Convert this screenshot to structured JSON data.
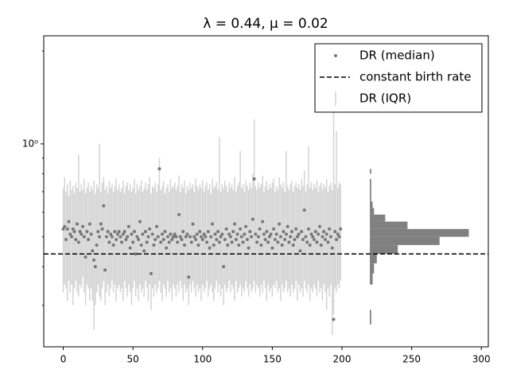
{
  "chart_data": {
    "type": "errorbar_scatter",
    "title": "λ = 0.44, μ = 0.02",
    "xlim": [
      -14,
      305
    ],
    "xticks": [
      0,
      50,
      100,
      150,
      200,
      250,
      300
    ],
    "ylim": [
      0.22,
      2.24
    ],
    "yscale": "log",
    "yticks": [
      {
        "value": 1,
        "label": "10⁰"
      }
    ],
    "yticks_minor": [
      0.3,
      0.4,
      0.5,
      0.6,
      0.7,
      0.8,
      0.9,
      2
    ],
    "legend": "upper right",
    "x": [
      0,
      1,
      2,
      3,
      4,
      5,
      6,
      7,
      8,
      9,
      10,
      11,
      12,
      13,
      14,
      15,
      16,
      17,
      18,
      19,
      20,
      21,
      22,
      23,
      24,
      25,
      26,
      27,
      28,
      29,
      30,
      31,
      32,
      33,
      34,
      35,
      36,
      37,
      38,
      39,
      40,
      41,
      42,
      43,
      44,
      45,
      46,
      47,
      48,
      49,
      50,
      51,
      52,
      53,
      54,
      55,
      56,
      57,
      58,
      59,
      60,
      61,
      62,
      63,
      64,
      65,
      66,
      67,
      68,
      69,
      70,
      71,
      72,
      73,
      74,
      75,
      76,
      77,
      78,
      79,
      80,
      81,
      82,
      83,
      84,
      85,
      86,
      87,
      88,
      89,
      90,
      91,
      92,
      93,
      94,
      95,
      96,
      97,
      98,
      99,
      100,
      101,
      102,
      103,
      104,
      105,
      106,
      107,
      108,
      109,
      110,
      111,
      112,
      113,
      114,
      115,
      116,
      117,
      118,
      119,
      120,
      121,
      122,
      123,
      124,
      125,
      126,
      127,
      128,
      129,
      130,
      131,
      132,
      133,
      134,
      135,
      136,
      137,
      138,
      139,
      140,
      141,
      142,
      143,
      144,
      145,
      146,
      147,
      148,
      149,
      150,
      151,
      152,
      153,
      154,
      155,
      156,
      157,
      158,
      159,
      160,
      161,
      162,
      163,
      164,
      165,
      166,
      167,
      168,
      169,
      170,
      171,
      172,
      173,
      174,
      175,
      176,
      177,
      178,
      179,
      180,
      181,
      182,
      183,
      184,
      185,
      186,
      187,
      188,
      189,
      190,
      191,
      192,
      193,
      194,
      195,
      196,
      197,
      198,
      199
    ],
    "series": [
      {
        "name": "DR (median)",
        "color": "#777777",
        "values": [
          0.53,
          0.54,
          0.49,
          0.53,
          0.56,
          0.51,
          0.5,
          0.53,
          0.52,
          0.49,
          0.55,
          0.48,
          0.52,
          0.51,
          0.54,
          0.5,
          0.43,
          0.52,
          0.49,
          0.55,
          0.51,
          0.45,
          0.42,
          0.4,
          0.47,
          0.52,
          0.5,
          0.55,
          0.53,
          0.63,
          0.39,
          0.5,
          0.52,
          0.48,
          0.51,
          0.5,
          0.47,
          0.52,
          0.49,
          0.51,
          0.52,
          0.5,
          0.48,
          0.51,
          0.52,
          0.49,
          0.5,
          0.54,
          0.46,
          0.51,
          0.48,
          0.52,
          0.44,
          0.5,
          0.49,
          0.56,
          0.47,
          0.51,
          0.45,
          0.52,
          0.48,
          0.5,
          0.53,
          0.38,
          0.51,
          0.47,
          0.49,
          0.54,
          0.5,
          0.83,
          0.48,
          0.51,
          0.49,
          0.52,
          0.46,
          0.5,
          0.48,
          0.51,
          0.49,
          0.5,
          0.51,
          0.5,
          0.48,
          0.59,
          0.5,
          0.49,
          0.52,
          0.47,
          0.5,
          0.51,
          0.37,
          0.5,
          0.48,
          0.55,
          0.5,
          0.49,
          0.51,
          0.47,
          0.52,
          0.5,
          0.49,
          0.51,
          0.5,
          0.48,
          0.52,
          0.46,
          0.5,
          0.55,
          0.47,
          0.51,
          0.49,
          0.52,
          0.48,
          0.5,
          0.51,
          0.4,
          0.49,
          0.53,
          0.47,
          0.51,
          0.5,
          0.48,
          0.52,
          0.55,
          0.49,
          0.51,
          0.47,
          0.53,
          0.5,
          0.48,
          0.51,
          0.54,
          0.49,
          0.46,
          0.52,
          0.5,
          0.57,
          0.77,
          0.51,
          0.48,
          0.5,
          0.53,
          0.47,
          0.56,
          0.51,
          0.49,
          0.52,
          0.48,
          0.5,
          0.51,
          0.46,
          0.53,
          0.49,
          0.51,
          0.48,
          0.55,
          0.5,
          0.47,
          0.52,
          0.49,
          0.51,
          0.54,
          0.48,
          0.5,
          0.52,
          0.47,
          0.49,
          0.53,
          0.5,
          0.51,
          0.45,
          0.52,
          0.49,
          0.61,
          0.5,
          0.48,
          0.53,
          0.47,
          0.51,
          0.5,
          0.49,
          0.52,
          0.48,
          0.51,
          0.54,
          0.47,
          0.5,
          0.52,
          0.49,
          0.51,
          0.48,
          0.53,
          0.5,
          0.46,
          0.27,
          0.52,
          0.49,
          0.51,
          0.5,
          0.53
        ]
      }
    ],
    "iqr": {
      "name": "DR (IQR)",
      "color": "#d3d3d3",
      "low": [
        0.33,
        0.35,
        0.34,
        0.31,
        0.36,
        0.33,
        0.35,
        0.3,
        0.34,
        0.36,
        0.33,
        0.32,
        0.35,
        0.34,
        0.37,
        0.33,
        0.3,
        0.35,
        0.34,
        0.31,
        0.34,
        0.31,
        0.25,
        0.3,
        0.33,
        0.35,
        0.32,
        0.31,
        0.34,
        0.36,
        0.3,
        0.33,
        0.35,
        0.32,
        0.34,
        0.36,
        0.33,
        0.35,
        0.31,
        0.34,
        0.35,
        0.33,
        0.34,
        0.31,
        0.36,
        0.34,
        0.32,
        0.35,
        0.33,
        0.3,
        0.34,
        0.36,
        0.32,
        0.34,
        0.31,
        0.35,
        0.33,
        0.34,
        0.32,
        0.36,
        0.34,
        0.31,
        0.35,
        0.29,
        0.34,
        0.32,
        0.35,
        0.33,
        0.34,
        0.36,
        0.33,
        0.31,
        0.35,
        0.34,
        0.32,
        0.36,
        0.33,
        0.34,
        0.31,
        0.35,
        0.34,
        0.32,
        0.35,
        0.33,
        0.36,
        0.34,
        0.31,
        0.35,
        0.33,
        0.34,
        0.3,
        0.35,
        0.33,
        0.36,
        0.34,
        0.32,
        0.35,
        0.33,
        0.34,
        0.31,
        0.35,
        0.33,
        0.34,
        0.36,
        0.32,
        0.34,
        0.35,
        0.33,
        0.31,
        0.34,
        0.36,
        0.33,
        0.35,
        0.32,
        0.34,
        0.3,
        0.35,
        0.33,
        0.34,
        0.36,
        0.33,
        0.35,
        0.34,
        0.31,
        0.36,
        0.33,
        0.34,
        0.35,
        0.32,
        0.34,
        0.33,
        0.36,
        0.34,
        0.32,
        0.35,
        0.33,
        0.34,
        0.36,
        0.33,
        0.35,
        0.34,
        0.32,
        0.35,
        0.33,
        0.36,
        0.34,
        0.31,
        0.35,
        0.33,
        0.34,
        0.32,
        0.35,
        0.34,
        0.36,
        0.33,
        0.34,
        0.31,
        0.35,
        0.33,
        0.34,
        0.36,
        0.33,
        0.34,
        0.32,
        0.35,
        0.33,
        0.34,
        0.36,
        0.31,
        0.35,
        0.33,
        0.34,
        0.32,
        0.36,
        0.34,
        0.33,
        0.35,
        0.31,
        0.34,
        0.33,
        0.35,
        0.34,
        0.32,
        0.36,
        0.33,
        0.34,
        0.31,
        0.35,
        0.33,
        0.29,
        0.34,
        0.32,
        0.35,
        0.24,
        0.28,
        0.34,
        0.33,
        0.35,
        0.34,
        0.36
      ],
      "high": [
        0.72,
        0.78,
        0.7,
        0.74,
        0.68,
        0.76,
        0.71,
        0.73,
        0.69,
        0.75,
        0.72,
        0.92,
        0.7,
        0.74,
        0.71,
        0.77,
        0.69,
        0.72,
        0.75,
        0.7,
        0.73,
        0.71,
        0.76,
        0.69,
        0.74,
        0.72,
        1.0,
        0.7,
        0.75,
        0.78,
        0.71,
        0.73,
        0.69,
        0.76,
        0.72,
        0.74,
        0.7,
        0.73,
        0.77,
        0.71,
        0.74,
        0.7,
        0.72,
        0.76,
        0.69,
        0.73,
        0.75,
        0.71,
        0.74,
        0.7,
        0.72,
        0.77,
        0.69,
        0.74,
        0.71,
        0.73,
        0.76,
        0.7,
        0.72,
        0.75,
        0.71,
        0.74,
        0.78,
        0.69,
        0.73,
        0.72,
        0.75,
        0.7,
        0.74,
        0.9,
        0.71,
        0.73,
        0.76,
        0.69,
        0.72,
        0.74,
        0.7,
        0.77,
        0.72,
        0.73,
        0.75,
        0.71,
        0.73,
        0.79,
        0.7,
        0.74,
        0.72,
        0.76,
        0.69,
        0.73,
        0.71,
        0.75,
        0.72,
        0.74,
        0.7,
        0.77,
        0.73,
        0.71,
        0.74,
        0.72,
        0.76,
        0.7,
        0.73,
        0.75,
        0.71,
        0.74,
        0.69,
        0.77,
        0.72,
        0.73,
        0.75,
        0.71,
        1.05,
        0.7,
        0.74,
        0.72,
        0.76,
        0.73,
        0.7,
        0.75,
        0.72,
        0.74,
        0.71,
        0.78,
        0.7,
        0.73,
        0.75,
        0.95,
        0.72,
        0.74,
        0.7,
        0.76,
        0.73,
        0.71,
        0.75,
        0.72,
        0.8,
        1.2,
        0.73,
        0.71,
        0.75,
        0.72,
        0.74,
        0.79,
        0.7,
        0.73,
        0.76,
        0.71,
        0.74,
        0.72,
        0.75,
        0.77,
        0.7,
        0.73,
        0.71,
        0.78,
        0.74,
        0.72,
        0.75,
        0.7,
        0.95,
        0.73,
        0.71,
        0.74,
        0.76,
        0.7,
        0.73,
        0.75,
        0.72,
        0.74,
        0.71,
        0.77,
        0.73,
        0.82,
        0.7,
        0.74,
        0.98,
        0.72,
        0.75,
        0.71,
        0.74,
        0.72,
        0.76,
        0.7,
        0.73,
        0.75,
        0.71,
        0.74,
        0.72,
        0.77,
        0.7,
        0.73,
        0.75,
        0.71,
        1.5,
        0.74,
        1.1,
        0.72,
        0.75,
        0.74
      ]
    },
    "hline": {
      "name": "constant birth rate",
      "value": 0.44,
      "color": "#000000"
    },
    "histogram": {
      "base": 220,
      "color": "#808080",
      "bins": [
        0.26,
        0.29,
        0.32,
        0.35,
        0.38,
        0.41,
        0.44,
        0.47,
        0.5,
        0.53,
        0.56,
        0.59,
        0.62,
        0.65,
        0.68,
        0.71,
        0.74,
        0.77,
        0.8,
        0.83,
        0.86
      ],
      "counts": [
        1,
        0,
        0,
        2,
        3,
        5,
        20,
        50,
        71,
        27,
        11,
        3,
        2,
        1,
        1,
        1,
        1,
        0,
        1,
        0
      ]
    }
  }
}
